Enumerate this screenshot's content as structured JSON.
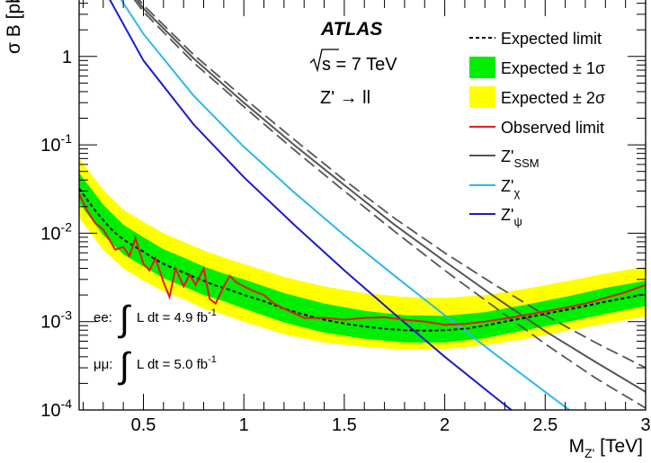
{
  "chart_data": {
    "type": "line",
    "x_axis": {
      "label_main": "M",
      "label_sub": "Z'",
      "label_unit": "[TeV]",
      "range": [
        0.18,
        3.0
      ],
      "ticks": [
        {
          "value": 0.5,
          "label": "0.5"
        },
        {
          "value": 1.0,
          "label": "1"
        },
        {
          "value": 1.5,
          "label": "1.5"
        },
        {
          "value": 2.0,
          "label": "2"
        },
        {
          "value": 2.5,
          "label": "2.5"
        },
        {
          "value": 3.0,
          "label": "3"
        }
      ]
    },
    "y_axis": {
      "label": "σ B [pb]",
      "scale": "log",
      "range": [
        0.0001,
        4.5
      ],
      "ticks": [
        {
          "value": 0.0001,
          "base": "10",
          "exp": "-4"
        },
        {
          "value": 0.001,
          "base": "10",
          "exp": "-3"
        },
        {
          "value": 0.01,
          "base": "10",
          "exp": "-2"
        },
        {
          "value": 0.1,
          "base": "10",
          "exp": "-1"
        },
        {
          "value": 1,
          "base": "1",
          "exp": ""
        }
      ]
    },
    "annotations": {
      "experiment": "ATLAS",
      "energy_label": "s = 7 TeV",
      "process_label": "Z' → ll",
      "lumi_ee_prefix": "ee:",
      "lumi_ee_text": "L dt = 4.9 fb",
      "lumi_ee_exp": "-1",
      "lumi_mm_prefix": "μμ:",
      "lumi_mm_text": "L dt = 5.0 fb",
      "lumi_mm_exp": "-1"
    },
    "legend": [
      {
        "label": "Expected limit",
        "style": "dashed",
        "color": "#000000"
      },
      {
        "label": "Expected ± 1σ",
        "style": "band",
        "color": "#00ee00"
      },
      {
        "label": "Expected ± 2σ",
        "style": "band",
        "color": "#ffff00"
      },
      {
        "label": "Observed limit",
        "style": "line",
        "color": "#e41a1c"
      },
      {
        "label": "Z'",
        "sub": "SSM",
        "style": "line",
        "color": "#555555"
      },
      {
        "label": "Z'",
        "sub": "χ",
        "style": "line",
        "color": "#2ab8ee"
      },
      {
        "label": "Z'",
        "sub": "ψ",
        "style": "line",
        "color": "#1a1acc"
      }
    ],
    "series": {
      "expected": {
        "x": [
          0.18,
          0.22,
          0.26,
          0.3,
          0.35,
          0.4,
          0.45,
          0.5,
          0.55,
          0.6,
          0.65,
          0.7,
          0.75,
          0.8,
          0.85,
          0.9,
          0.95,
          1.0,
          1.1,
          1.2,
          1.3,
          1.4,
          1.5,
          1.6,
          1.7,
          1.8,
          1.9,
          2.0,
          2.1,
          2.2,
          2.3,
          2.4,
          2.5,
          2.6,
          2.7,
          2.8,
          2.9,
          3.0
        ],
        "y": [
          0.032,
          0.024,
          0.018,
          0.014,
          0.0105,
          0.0085,
          0.0072,
          0.0062,
          0.0052,
          0.0045,
          0.004,
          0.0036,
          0.0032,
          0.0029,
          0.0026,
          0.0024,
          0.0022,
          0.002,
          0.0017,
          0.0014,
          0.0012,
          0.00105,
          0.00095,
          0.00088,
          0.00083,
          0.0008,
          0.00079,
          0.0008,
          0.00083,
          0.0009,
          0.001,
          0.0011,
          0.00122,
          0.00135,
          0.0015,
          0.00168,
          0.00185,
          0.00205
        ]
      },
      "observed": {
        "x": [
          0.18,
          0.22,
          0.26,
          0.3,
          0.33,
          0.36,
          0.4,
          0.43,
          0.46,
          0.5,
          0.53,
          0.56,
          0.6,
          0.63,
          0.66,
          0.7,
          0.73,
          0.76,
          0.8,
          0.83,
          0.86,
          0.9,
          0.93,
          0.96,
          1.0,
          1.05,
          1.1,
          1.15,
          1.2,
          1.3,
          1.4,
          1.5,
          1.6,
          1.7,
          1.8,
          1.9,
          2.0,
          2.1,
          2.2,
          2.3,
          2.4,
          2.5,
          2.6,
          2.7,
          2.8,
          2.9,
          3.0
        ],
        "y": [
          0.028,
          0.018,
          0.013,
          0.011,
          0.0085,
          0.0065,
          0.007,
          0.0055,
          0.0088,
          0.0045,
          0.0038,
          0.0052,
          0.0028,
          0.0019,
          0.004,
          0.0025,
          0.0034,
          0.0026,
          0.004,
          0.0018,
          0.0016,
          0.0025,
          0.0033,
          0.0028,
          0.0025,
          0.0022,
          0.002,
          0.0016,
          0.0014,
          0.0011,
          0.0011,
          0.00105,
          0.0011,
          0.00112,
          0.00105,
          0.001,
          0.00092,
          0.00094,
          0.001,
          0.00108,
          0.00118,
          0.0013,
          0.00143,
          0.0016,
          0.00185,
          0.00215,
          0.0026
        ]
      },
      "band1": {
        "x": [
          0.18,
          0.3,
          0.4,
          0.5,
          0.6,
          0.7,
          0.8,
          0.9,
          1.0,
          1.2,
          1.4,
          1.6,
          1.8,
          2.0,
          2.2,
          2.4,
          2.6,
          2.8,
          3.0
        ],
        "lo": [
          0.022,
          0.0095,
          0.0058,
          0.0042,
          0.0031,
          0.0025,
          0.002,
          0.0017,
          0.0014,
          0.00098,
          0.00075,
          0.00064,
          0.00058,
          0.00058,
          0.00065,
          0.0008,
          0.00098,
          0.00122,
          0.0015
        ],
        "hi": [
          0.048,
          0.021,
          0.0125,
          0.009,
          0.0066,
          0.0053,
          0.0042,
          0.0035,
          0.003,
          0.0021,
          0.0016,
          0.00132,
          0.00118,
          0.00116,
          0.00128,
          0.00155,
          0.0019,
          0.0024,
          0.0029
        ]
      },
      "band2": {
        "x": [
          0.18,
          0.3,
          0.4,
          0.5,
          0.6,
          0.7,
          0.8,
          0.9,
          1.0,
          1.2,
          1.4,
          1.6,
          1.8,
          2.0,
          2.2,
          2.4,
          2.6,
          2.8,
          3.0
        ],
        "lo": [
          0.015,
          0.0065,
          0.004,
          0.0029,
          0.0022,
          0.0018,
          0.0014,
          0.0012,
          0.001,
          0.00072,
          0.00058,
          0.00052,
          0.00048,
          0.00049,
          0.00054,
          0.00064,
          0.00078,
          0.00095,
          0.00115
        ],
        "hi": [
          0.07,
          0.031,
          0.0185,
          0.0135,
          0.01,
          0.008,
          0.0064,
          0.0053,
          0.0045,
          0.0032,
          0.0025,
          0.0021,
          0.0019,
          0.00185,
          0.002,
          0.00235,
          0.00285,
          0.0035,
          0.0042
        ]
      },
      "zssm": {
        "x": [
          0.4,
          0.5,
          0.75,
          1.0,
          1.25,
          1.5,
          1.75,
          2.0,
          2.25,
          2.5,
          2.75,
          3.0
        ],
        "y": [
          7.0,
          3.5,
          0.95,
          0.3,
          0.1,
          0.035,
          0.0125,
          0.0048,
          0.0019,
          0.00078,
          0.00035,
          0.00016
        ]
      },
      "zssm_hi": {
        "x": [
          0.4,
          0.5,
          0.75,
          1.0,
          1.25,
          1.5,
          1.75,
          2.0,
          2.25,
          2.5,
          2.75,
          3.0
        ],
        "y": [
          7.5,
          3.8,
          1.05,
          0.34,
          0.115,
          0.04,
          0.0148,
          0.006,
          0.0026,
          0.00118,
          0.00058,
          0.0003
        ]
      },
      "zssm_lo": {
        "x": [
          0.4,
          0.5,
          0.75,
          1.0,
          1.25,
          1.5,
          1.75,
          2.0,
          2.25,
          2.5,
          2.75,
          3.0
        ],
        "y": [
          6.5,
          3.2,
          0.85,
          0.27,
          0.088,
          0.03,
          0.0105,
          0.0038,
          0.00145,
          0.00056,
          0.00023,
          0.000105
        ]
      },
      "zchi": {
        "x": [
          0.35,
          0.5,
          0.75,
          1.0,
          1.25,
          1.5,
          1.75,
          2.0,
          2.25,
          2.5,
          2.75
        ],
        "y": [
          6.0,
          1.8,
          0.36,
          0.095,
          0.029,
          0.0095,
          0.0033,
          0.00118,
          0.00043,
          0.00016,
          6e-05
        ]
      },
      "zpsi": {
        "x": [
          0.3,
          0.5,
          0.75,
          1.0,
          1.25,
          1.5,
          1.75,
          2.0,
          2.25,
          2.5
        ],
        "y": [
          6.0,
          0.9,
          0.17,
          0.043,
          0.0125,
          0.0038,
          0.00122,
          0.0004,
          0.00014,
          5e-05
        ]
      }
    }
  }
}
